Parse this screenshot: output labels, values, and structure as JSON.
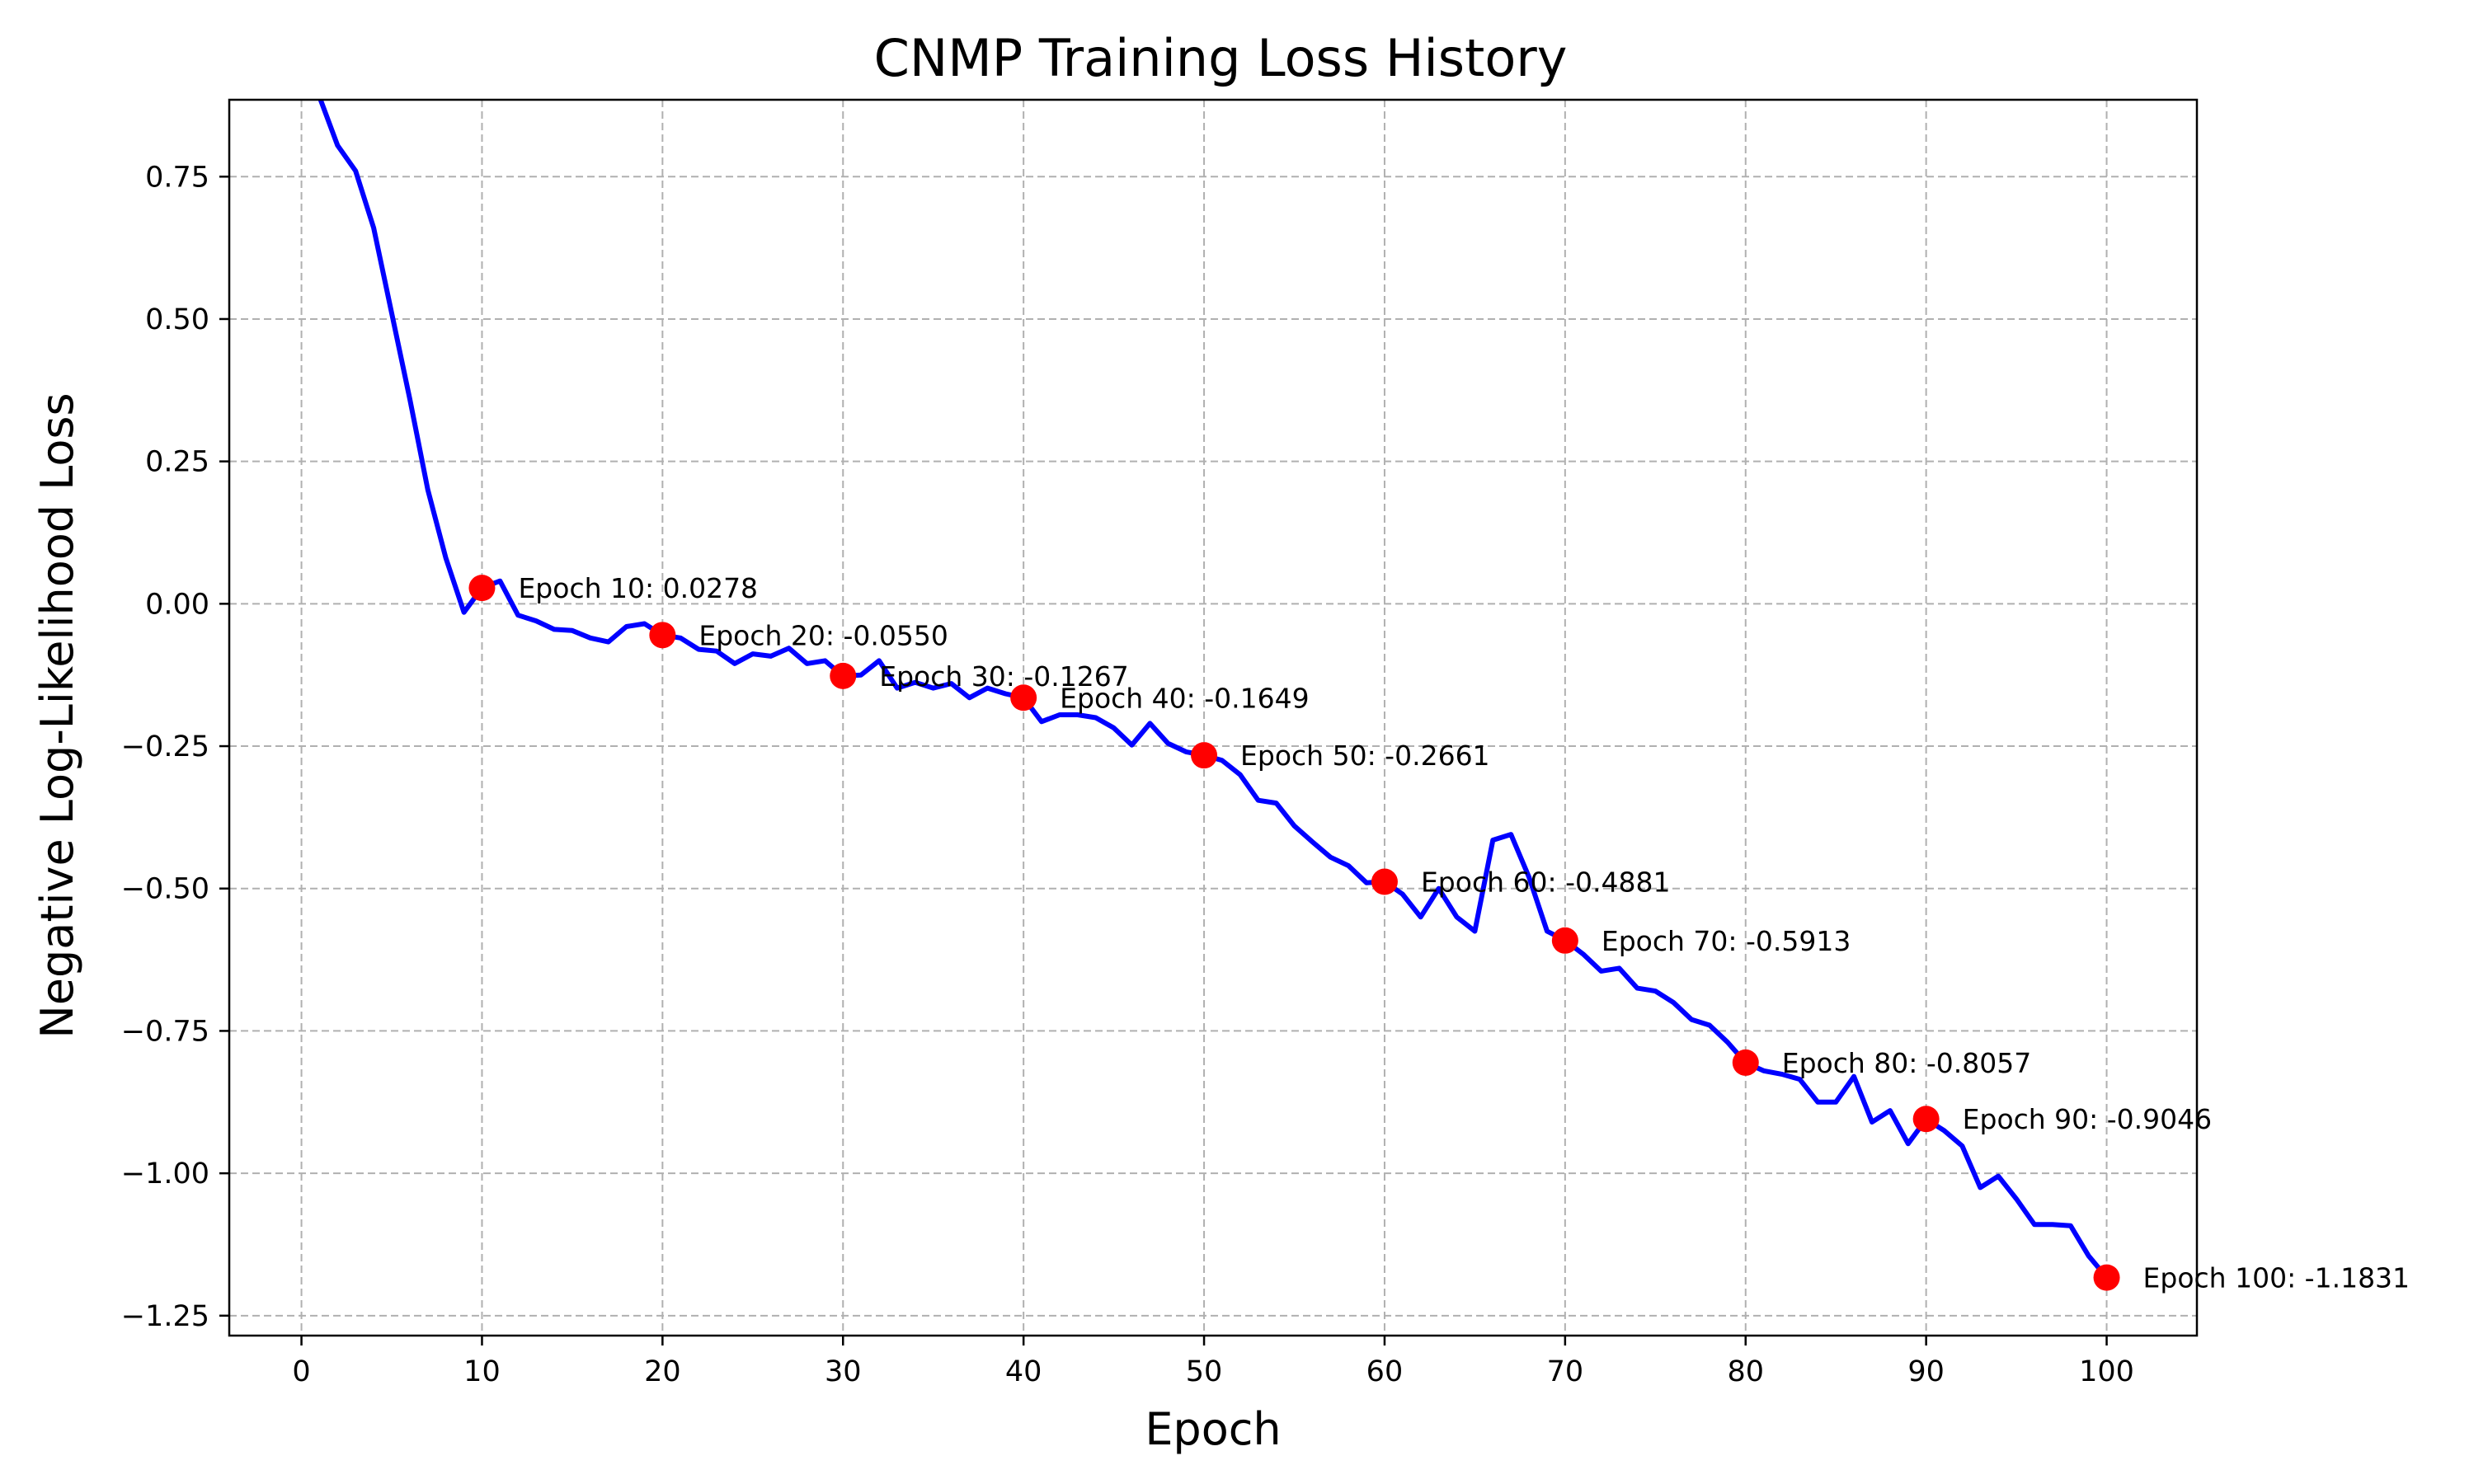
{
  "chart_data": {
    "type": "line",
    "title": "CNMP Training Loss History",
    "xlabel": "Epoch",
    "ylabel": "Negative Log-Likelihood Loss",
    "xlim": [
      -4,
      105
    ],
    "ylim": [
      -1.285,
      0.885
    ],
    "xticks": [
      0,
      10,
      20,
      30,
      40,
      50,
      60,
      70,
      80,
      90,
      100
    ],
    "yticks": [
      0.75,
      0.5,
      0.25,
      0.0,
      -0.25,
      -0.5,
      -0.75,
      -1.0,
      -1.25
    ],
    "ytick_labels": [
      "0.75",
      "0.50",
      "0.25",
      "0.00",
      "−0.25",
      "−0.50",
      "−0.75",
      "−1.00",
      "−1.25"
    ],
    "grid": true,
    "colors": {
      "line": "#0000ff",
      "marker": "#ff0000",
      "grid": "#b0b0b0"
    },
    "series": [
      {
        "x": [
          0,
          1,
          2,
          3,
          4,
          5,
          6,
          7,
          8,
          9,
          10,
          11,
          12,
          13,
          14,
          15,
          16,
          17,
          18,
          19,
          20,
          21,
          22,
          23,
          24,
          25,
          26,
          27,
          28,
          29,
          30,
          31,
          32,
          33,
          34,
          35,
          36,
          37,
          38,
          39,
          40,
          41,
          42,
          43,
          44,
          45,
          46,
          47,
          48,
          49,
          50,
          51,
          52,
          53,
          54,
          55,
          56,
          57,
          58,
          59,
          60,
          61,
          62,
          63,
          64,
          65,
          66,
          67,
          68,
          69,
          70,
          71,
          72,
          73,
          74,
          75,
          76,
          77,
          78,
          79,
          80,
          81,
          82,
          83,
          84,
          85,
          86,
          87,
          88,
          89,
          90,
          91,
          92,
          93,
          94,
          95,
          96,
          97,
          98,
          99,
          100
        ],
        "values": [
          1.05,
          0.89,
          0.805,
          0.76,
          0.66,
          0.51,
          0.36,
          0.2,
          0.08,
          -0.015,
          0.028,
          0.04,
          -0.02,
          -0.03,
          -0.045,
          -0.047,
          -0.06,
          -0.067,
          -0.04,
          -0.035,
          -0.055,
          -0.06,
          -0.08,
          -0.083,
          -0.105,
          -0.088,
          -0.092,
          -0.078,
          -0.105,
          -0.1,
          -0.127,
          -0.125,
          -0.1,
          -0.148,
          -0.138,
          -0.148,
          -0.14,
          -0.165,
          -0.148,
          -0.158,
          -0.165,
          -0.207,
          -0.195,
          -0.195,
          -0.2,
          -0.218,
          -0.248,
          -0.21,
          -0.245,
          -0.26,
          -0.266,
          -0.275,
          -0.3,
          -0.345,
          -0.35,
          -0.39,
          -0.418,
          -0.445,
          -0.46,
          -0.49,
          -0.488,
          -0.51,
          -0.55,
          -0.5,
          -0.55,
          -0.575,
          -0.415,
          -0.405,
          -0.48,
          -0.575,
          -0.591,
          -0.615,
          -0.645,
          -0.64,
          -0.675,
          -0.68,
          -0.7,
          -0.73,
          -0.74,
          -0.77,
          -0.806,
          -0.82,
          -0.826,
          -0.835,
          -0.875,
          -0.875,
          -0.83,
          -0.91,
          -0.89,
          -0.948,
          -0.905,
          -0.925,
          -0.952,
          -1.025,
          -1.005,
          -1.045,
          -1.09,
          -1.09,
          -1.092,
          -1.145,
          -1.183
        ]
      }
    ],
    "markers": [
      {
        "x": 10,
        "y": 0.0278,
        "label": "Epoch 10: 0.0278"
      },
      {
        "x": 20,
        "y": -0.055,
        "label": "Epoch 20: -0.0550"
      },
      {
        "x": 30,
        "y": -0.1267,
        "label": "Epoch 30: -0.1267"
      },
      {
        "x": 40,
        "y": -0.1649,
        "label": "Epoch 40: -0.1649"
      },
      {
        "x": 50,
        "y": -0.2661,
        "label": "Epoch 50: -0.2661"
      },
      {
        "x": 60,
        "y": -0.4881,
        "label": "Epoch 60: -0.4881"
      },
      {
        "x": 70,
        "y": -0.5913,
        "label": "Epoch 70: -0.5913"
      },
      {
        "x": 80,
        "y": -0.8057,
        "label": "Epoch 80: -0.8057"
      },
      {
        "x": 90,
        "y": -0.9046,
        "label": "Epoch 90: -0.9046"
      },
      {
        "x": 100,
        "y": -1.1831,
        "label": "Epoch 100: -1.1831"
      }
    ]
  }
}
